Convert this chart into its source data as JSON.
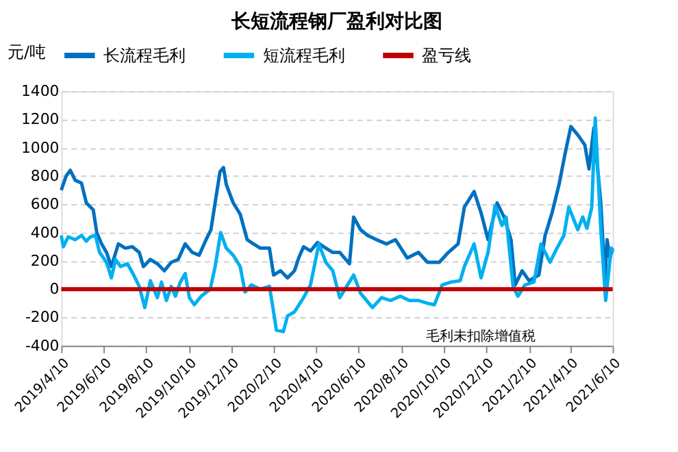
{
  "chart_data": {
    "type": "line",
    "title": "长短流程钢厂盈利对比图",
    "ylabel": "元/吨",
    "annotations": [
      "毛利未扣除增值税"
    ],
    "series": [
      {
        "name": "长流程毛利",
        "color": "#0070c0",
        "x": [
          "2019-04-10",
          "2019-04-17",
          "2019-04-23",
          "2019-04-30",
          "2019-05-09",
          "2019-05-16",
          "2019-05-26",
          "2019-05-31",
          "2019-06-07",
          "2019-06-14",
          "2019-06-21",
          "2019-07-01",
          "2019-07-11",
          "2019-07-21",
          "2019-07-31",
          "2019-08-06",
          "2019-08-16",
          "2019-08-26",
          "2019-09-05",
          "2019-09-15",
          "2019-09-25",
          "2019-10-05",
          "2019-10-15",
          "2019-10-25",
          "2019-11-04",
          "2019-11-11",
          "2019-11-17",
          "2019-11-24",
          "2019-11-29",
          "2019-12-03",
          "2019-12-13",
          "2019-12-23",
          "2020-01-02",
          "2020-01-11",
          "2020-01-21",
          "2020-02-03",
          "2020-02-09",
          "2020-02-19",
          "2020-02-29",
          "2020-03-10",
          "2020-03-16",
          "2020-03-23",
          "2020-04-02",
          "2020-04-12",
          "2020-04-21",
          "2020-05-04",
          "2020-05-14",
          "2020-05-28",
          "2020-06-03",
          "2020-06-13",
          "2020-06-23",
          "2020-07-06",
          "2020-07-20",
          "2020-08-02",
          "2020-08-19",
          "2020-09-04",
          "2020-09-17",
          "2020-10-04",
          "2020-10-17",
          "2020-10-31",
          "2020-11-09",
          "2020-11-23",
          "2020-12-03",
          "2020-12-13",
          "2020-12-26",
          "2021-01-05",
          "2021-01-15",
          "2021-01-21",
          "2021-01-31",
          "2021-02-10",
          "2021-02-24",
          "2021-03-05",
          "2021-03-15",
          "2021-03-25",
          "2021-04-04",
          "2021-04-11",
          "2021-04-21",
          "2021-05-01",
          "2021-05-07",
          "2021-05-14",
          "2021-05-24",
          "2021-05-30",
          "2021-06-02",
          "2021-06-06",
          "2021-06-10"
        ],
        "values": [
          700,
          800,
          840,
          770,
          750,
          610,
          560,
          400,
          320,
          260,
          160,
          320,
          290,
          300,
          260,
          160,
          210,
          180,
          130,
          190,
          210,
          320,
          260,
          240,
          350,
          420,
          610,
          830,
          860,
          740,
          610,
          530,
          350,
          320,
          290,
          290,
          100,
          130,
          80,
          130,
          220,
          300,
          270,
          330,
          300,
          260,
          260,
          180,
          510,
          420,
          380,
          350,
          320,
          350,
          220,
          260,
          190,
          190,
          260,
          320,
          580,
          690,
          540,
          350,
          610,
          510,
          350,
          30,
          130,
          60,
          100,
          380,
          540,
          740,
          990,
          1150,
          1090,
          1020,
          850,
          1140,
          610,
          60,
          350,
          220,
          290
        ]
      },
      {
        "name": "短流程毛利",
        "color": "#00b0f0",
        "x": [
          "2019-04-10",
          "2019-04-13",
          "2019-04-20",
          "2019-04-30",
          "2019-05-09",
          "2019-05-16",
          "2019-05-22",
          "2019-05-29",
          "2019-06-04",
          "2019-06-14",
          "2019-06-21",
          "2019-06-27",
          "2019-07-04",
          "2019-07-14",
          "2019-07-23",
          "2019-07-31",
          "2019-08-08",
          "2019-08-16",
          "2019-08-26",
          "2019-09-01",
          "2019-09-08",
          "2019-09-15",
          "2019-09-21",
          "2019-09-28",
          "2019-10-05",
          "2019-10-11",
          "2019-10-18",
          "2019-10-28",
          "2019-11-10",
          "2019-11-17",
          "2019-11-25",
          "2019-12-03",
          "2019-12-13",
          "2019-12-23",
          "2019-12-30",
          "2020-01-08",
          "2020-01-21",
          "2020-02-03",
          "2020-02-08",
          "2020-02-13",
          "2020-02-23",
          "2020-02-29",
          "2020-03-10",
          "2020-03-23",
          "2020-04-02",
          "2020-04-14",
          "2020-04-24",
          "2020-05-04",
          "2020-05-14",
          "2020-05-24",
          "2020-06-03",
          "2020-06-13",
          "2020-06-30",
          "2020-07-13",
          "2020-07-26",
          "2020-08-09",
          "2020-08-22",
          "2020-09-04",
          "2020-09-17",
          "2020-09-27",
          "2020-10-08",
          "2020-10-21",
          "2020-11-03",
          "2020-11-09",
          "2020-11-23",
          "2020-12-03",
          "2020-12-13",
          "2020-12-23",
          "2021-01-02",
          "2021-01-08",
          "2021-01-18",
          "2021-01-25",
          "2021-02-04",
          "2021-02-17",
          "2021-02-27",
          "2021-03-12",
          "2021-03-22",
          "2021-04-01",
          "2021-04-08",
          "2021-04-21",
          "2021-04-28",
          "2021-05-04",
          "2021-05-11",
          "2021-05-16",
          "2021-05-24",
          "2021-05-31",
          "2021-06-03",
          "2021-06-08",
          "2021-06-10"
        ],
        "values": [
          380,
          300,
          370,
          350,
          380,
          340,
          370,
          380,
          260,
          190,
          80,
          210,
          160,
          180,
          100,
          20,
          -130,
          60,
          -60,
          50,
          -80,
          20,
          -50,
          50,
          110,
          -60,
          -110,
          -50,
          0,
          160,
          400,
          290,
          240,
          160,
          -20,
          30,
          0,
          20,
          -130,
          -290,
          -300,
          -190,
          -160,
          -60,
          30,
          320,
          190,
          130,
          -60,
          20,
          100,
          -30,
          -130,
          -60,
          -80,
          -50,
          -80,
          -80,
          -100,
          -110,
          30,
          50,
          60,
          160,
          320,
          80,
          260,
          590,
          450,
          510,
          20,
          -50,
          30,
          50,
          320,
          190,
          290,
          380,
          580,
          420,
          510,
          430,
          580,
          1210,
          420,
          -80,
          60,
          290,
          260
        ]
      }
    ],
    "ref_lines": [
      {
        "axis": "y",
        "value": 0,
        "label": "盈亏线",
        "color": "#c00000"
      }
    ],
    "xlim": [
      "2019-04-10",
      "2021-06-10"
    ],
    "xticks": [
      {
        "value": "2019-04-10",
        "label": "2019/4/10"
      },
      {
        "value": "2019-06-10",
        "label": "2019/6/10"
      },
      {
        "value": "2019-08-10",
        "label": "2019/8/10"
      },
      {
        "value": "2019-10-10",
        "label": "2019/10/10"
      },
      {
        "value": "2019-12-10",
        "label": "2019/12/10"
      },
      {
        "value": "2020-02-10",
        "label": "2020/2/10"
      },
      {
        "value": "2020-04-10",
        "label": "2020/4/10"
      },
      {
        "value": "2020-06-10",
        "label": "2020/6/10"
      },
      {
        "value": "2020-08-10",
        "label": "2020/8/10"
      },
      {
        "value": "2020-10-10",
        "label": "2020/10/10"
      },
      {
        "value": "2020-12-10",
        "label": "2020/12/10"
      },
      {
        "value": "2021-02-10",
        "label": "2021/2/10"
      },
      {
        "value": "2021-04-10",
        "label": "2021/4/10"
      },
      {
        "value": "2021-06-10",
        "label": "2021/6/10"
      }
    ],
    "ylim": [
      -400,
      1400
    ],
    "yticks": [
      -400,
      -200,
      0,
      200,
      400,
      600,
      800,
      1000,
      1200,
      1400
    ],
    "grid": "y",
    "legend": "top",
    "marker": "none",
    "line_style": "solid"
  }
}
